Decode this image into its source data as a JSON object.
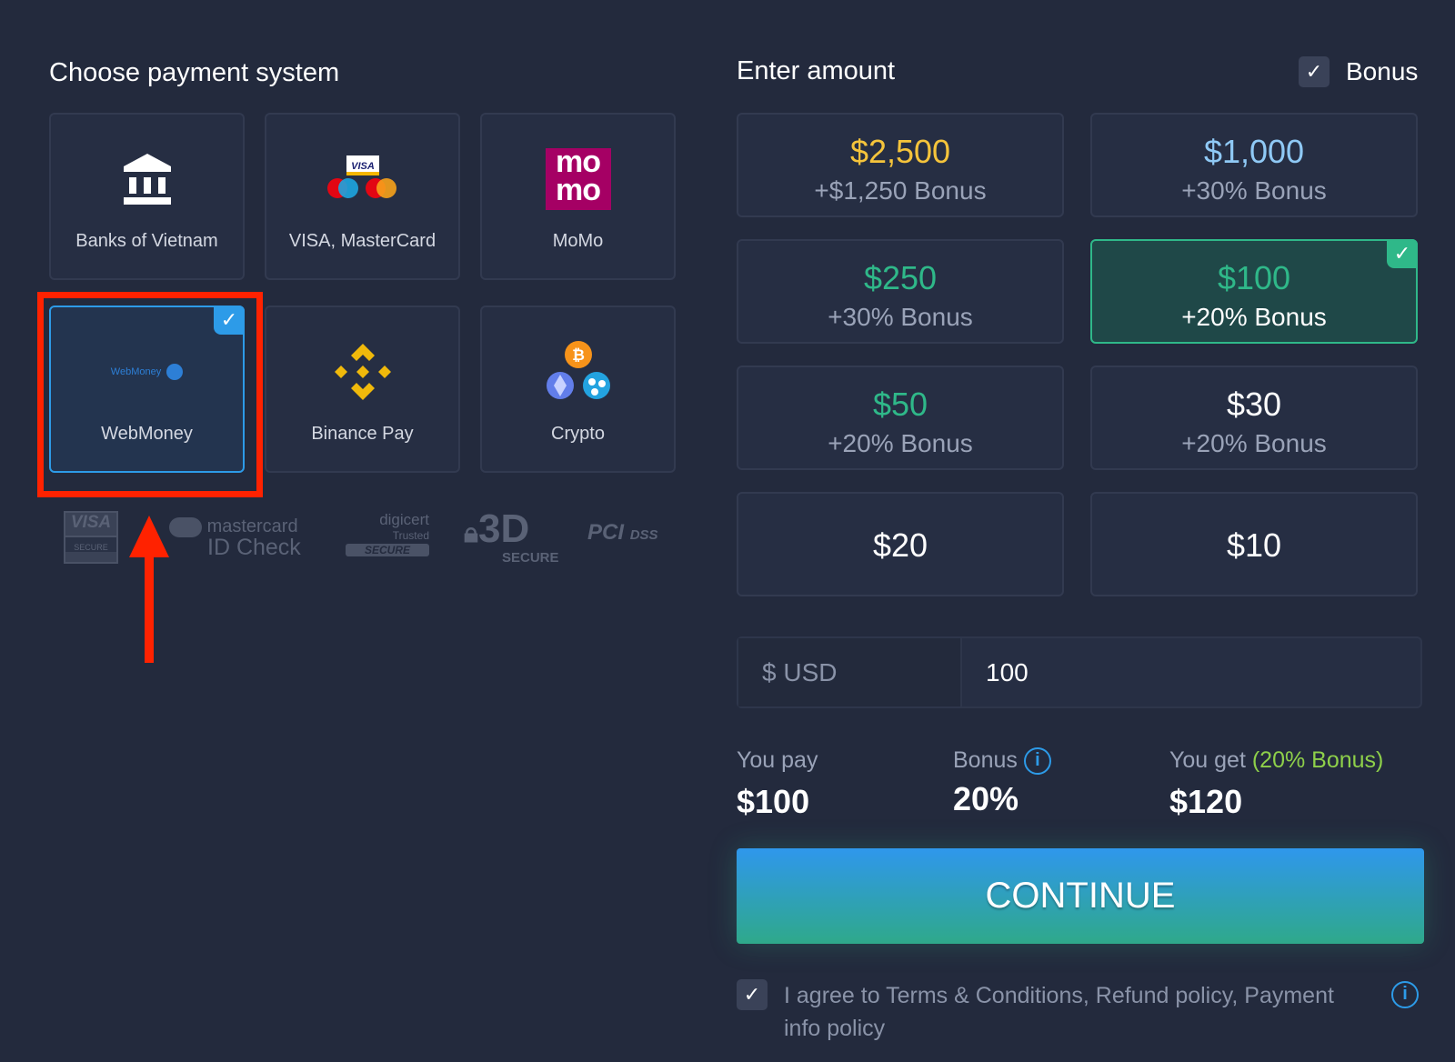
{
  "left": {
    "title": "Choose payment system",
    "methods": [
      {
        "label": "Banks of Vietnam",
        "icon": "bank-icon"
      },
      {
        "label": "VISA, MasterCard",
        "icon": "visa-mastercard-icon"
      },
      {
        "label": "MoMo",
        "icon": "momo-logo",
        "logo_text": "mo mo"
      },
      {
        "label": "WebMoney",
        "icon": "webmoney-logo",
        "logo_text": "WebMoney",
        "selected": true
      },
      {
        "label": "Binance Pay",
        "icon": "binance-icon"
      },
      {
        "label": "Crypto",
        "icon": "crypto-icon"
      }
    ],
    "trust_logos": {
      "visa": "VISA",
      "visa_sub": "SECURE",
      "mc": "mastercard",
      "mc_sub": "ID Check",
      "digicert": "digicert",
      "digicert_sub": "Trusted",
      "digicert_badge": "SECURE",
      "three_d": "3D",
      "three_d_sub": "SECURE",
      "pci": "PCI",
      "pci_sub": "DSS"
    }
  },
  "right": {
    "title": "Enter amount",
    "bonus_label": "Bonus",
    "bonus_checked": true,
    "amounts": [
      {
        "amount": "$2,500",
        "bonus": "+$1,250 Bonus",
        "color": "#f5c43b"
      },
      {
        "amount": "$1,000",
        "bonus": "+30% Bonus",
        "color": "#8fc9f5"
      },
      {
        "amount": "$250",
        "bonus": "+30% Bonus",
        "color": "#2fb889"
      },
      {
        "amount": "$100",
        "bonus": "+20% Bonus",
        "color": "#2fb889",
        "selected": true
      },
      {
        "amount": "$50",
        "bonus": "+20% Bonus",
        "color": "#2fb889"
      },
      {
        "amount": "$30",
        "bonus": "+20% Bonus",
        "color": "#ffffff"
      },
      {
        "amount": "$20",
        "color": "#ffffff"
      },
      {
        "amount": "$10",
        "color": "#ffffff"
      }
    ],
    "currency": "$ USD",
    "amount_value": "100",
    "summary": {
      "pay_label": "You pay",
      "pay_value": "$100",
      "bonus_label": "Bonus",
      "bonus_value": "20%",
      "get_label": "You get",
      "get_note": "(20% Bonus)",
      "get_value": "$120"
    },
    "continue": "CONTINUE",
    "agree": {
      "checked": true,
      "text": "I agree to Terms & Conditions, Refund policy, Payment info policy"
    }
  },
  "colors": {
    "accent": "#2d9be8",
    "green": "#2fb889",
    "highlight": "#ff2200",
    "note": "#8ed04a"
  }
}
